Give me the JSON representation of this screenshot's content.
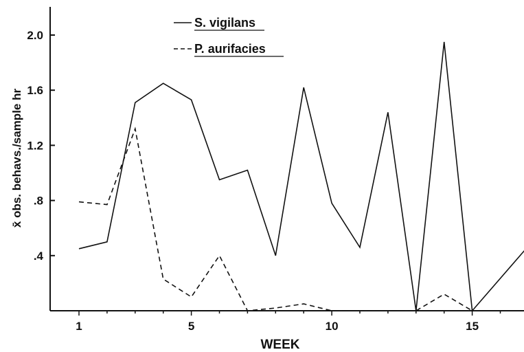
{
  "chart_data": {
    "type": "line",
    "xlabel": "WEEK",
    "ylabel": "x̄ obs. behavs./sample hr",
    "xlim": [
      0,
      17
    ],
    "ylim": [
      0,
      2.2
    ],
    "x_ticks": [
      1,
      5,
      10,
      15
    ],
    "x_tick_labels": [
      "1",
      "5",
      "10",
      "15"
    ],
    "y_ticks": [
      0.4,
      0.8,
      1.2,
      1.6,
      2.0
    ],
    "y_tick_labels": [
      ".4",
      ".8",
      "1.2",
      "1.6",
      "2.0"
    ],
    "grid": false,
    "legend_position": "top-center",
    "series": [
      {
        "name": "S. vigilans",
        "style": "solid",
        "color": "#111111",
        "x": [
          1,
          2,
          3,
          4,
          5,
          6,
          7,
          8,
          9,
          10,
          11,
          12,
          13,
          14,
          15,
          17
        ],
        "y": [
          0.45,
          0.5,
          1.51,
          1.65,
          1.53,
          0.95,
          1.02,
          0.4,
          1.62,
          0.78,
          0.46,
          1.44,
          0.0,
          1.95,
          0.0,
          0.47
        ]
      },
      {
        "name": "P. aurifacies",
        "style": "dashed",
        "color": "#111111",
        "x": [
          1,
          2,
          3,
          4,
          5,
          6,
          7,
          8,
          9,
          10,
          11,
          12,
          13,
          14,
          15
        ],
        "y": [
          0.79,
          0.77,
          1.32,
          0.23,
          0.1,
          0.4,
          0.0,
          0.02,
          0.05,
          0.0,
          0.0,
          0.0,
          0.0,
          0.12,
          0.0
        ]
      }
    ]
  }
}
